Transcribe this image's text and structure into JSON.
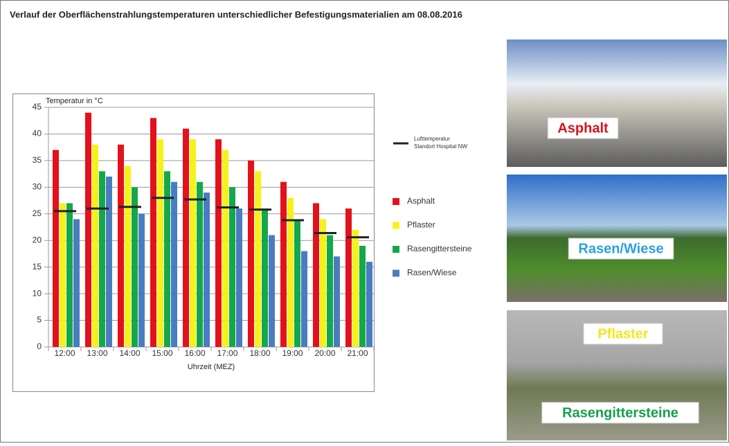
{
  "title": "Verlauf der Oberflächenstrahlungstemperaturen unterschiedlicher Befestigungsmaterialien am 08.08.2016",
  "chart_data": {
    "type": "bar",
    "ylabel": "Temperatur in °C",
    "xlabel": "Uhrzeit (MEZ)",
    "categories": [
      "12:00",
      "13:00",
      "14:00",
      "15:00",
      "16:00",
      "17:00",
      "18:00",
      "19:00",
      "20:00",
      "21:00"
    ],
    "series": [
      {
        "name": "Asphalt",
        "color": "#e3111c",
        "values": [
          37,
          44,
          38,
          43,
          41,
          39,
          35,
          31,
          27,
          26
        ]
      },
      {
        "name": "Pflaster",
        "color": "#f5f21a",
        "values": [
          27,
          38,
          34,
          39,
          39,
          37,
          33,
          28,
          24,
          22
        ]
      },
      {
        "name": "Rasengittersteine",
        "color": "#14a84a",
        "values": [
          27,
          33,
          30,
          33,
          31,
          30,
          26,
          24,
          21,
          19
        ]
      },
      {
        "name": "Rasen/Wiese",
        "color": "#4a7cc0",
        "values": [
          24,
          32,
          25,
          31,
          29,
          26,
          21,
          18,
          17,
          16
        ]
      }
    ],
    "reference": {
      "name": [
        "Lufttemperatur",
        "Standort Hospital NW"
      ],
      "color": "#222222",
      "values": [
        25.5,
        26,
        26.3,
        28,
        27.7,
        26.2,
        25.8,
        23.8,
        21.4,
        20.6
      ]
    },
    "ylim": [
      0,
      45
    ],
    "yticks": [
      0,
      5,
      10,
      15,
      20,
      25,
      30,
      35,
      40,
      45
    ],
    "grid": true
  },
  "photos": [
    {
      "label": "Asphalt",
      "color": "#d8121c"
    },
    {
      "label": "Rasen/Wiese",
      "color": "#2aa2dc"
    },
    {
      "label": "Pflaster",
      "color": "#f2e81a"
    },
    {
      "label": "Rasengittersteine",
      "color": "#15a04a"
    }
  ]
}
